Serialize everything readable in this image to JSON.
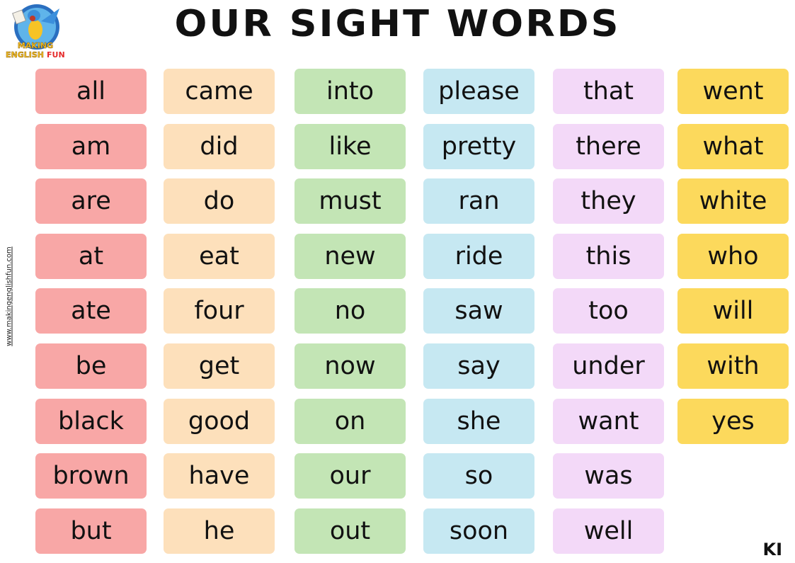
{
  "title": "OUR SIGHT WORDS",
  "logo": {
    "line1": "MAKING",
    "line2": "ENGLISH",
    "line3": "FUN"
  },
  "website": "www.makingenglishfun.com",
  "level": "KI",
  "columns": [
    {
      "color": "#f8a7a6",
      "words": [
        "all",
        "am",
        "are",
        "at",
        "ate",
        "be",
        "black",
        "brown",
        "but"
      ]
    },
    {
      "color": "#fde0bb",
      "words": [
        "came",
        "did",
        "do",
        "eat",
        "four",
        "get",
        "good",
        "have",
        "he"
      ]
    },
    {
      "color": "#c3e5b5",
      "words": [
        "into",
        "like",
        "must",
        "new",
        "no",
        "now",
        "on",
        "our",
        "out"
      ]
    },
    {
      "color": "#c6e8f2",
      "words": [
        "please",
        "pretty",
        "ran",
        "ride",
        "saw",
        "say",
        "she",
        "so",
        "soon"
      ]
    },
    {
      "color": "#f3d9f8",
      "words": [
        "that",
        "there",
        "they",
        "this",
        "too",
        "under",
        "want",
        "was",
        "well"
      ]
    },
    {
      "color": "#fcd95c",
      "words": [
        "went",
        "what",
        "white",
        "who",
        "will",
        "with",
        "yes"
      ]
    }
  ]
}
